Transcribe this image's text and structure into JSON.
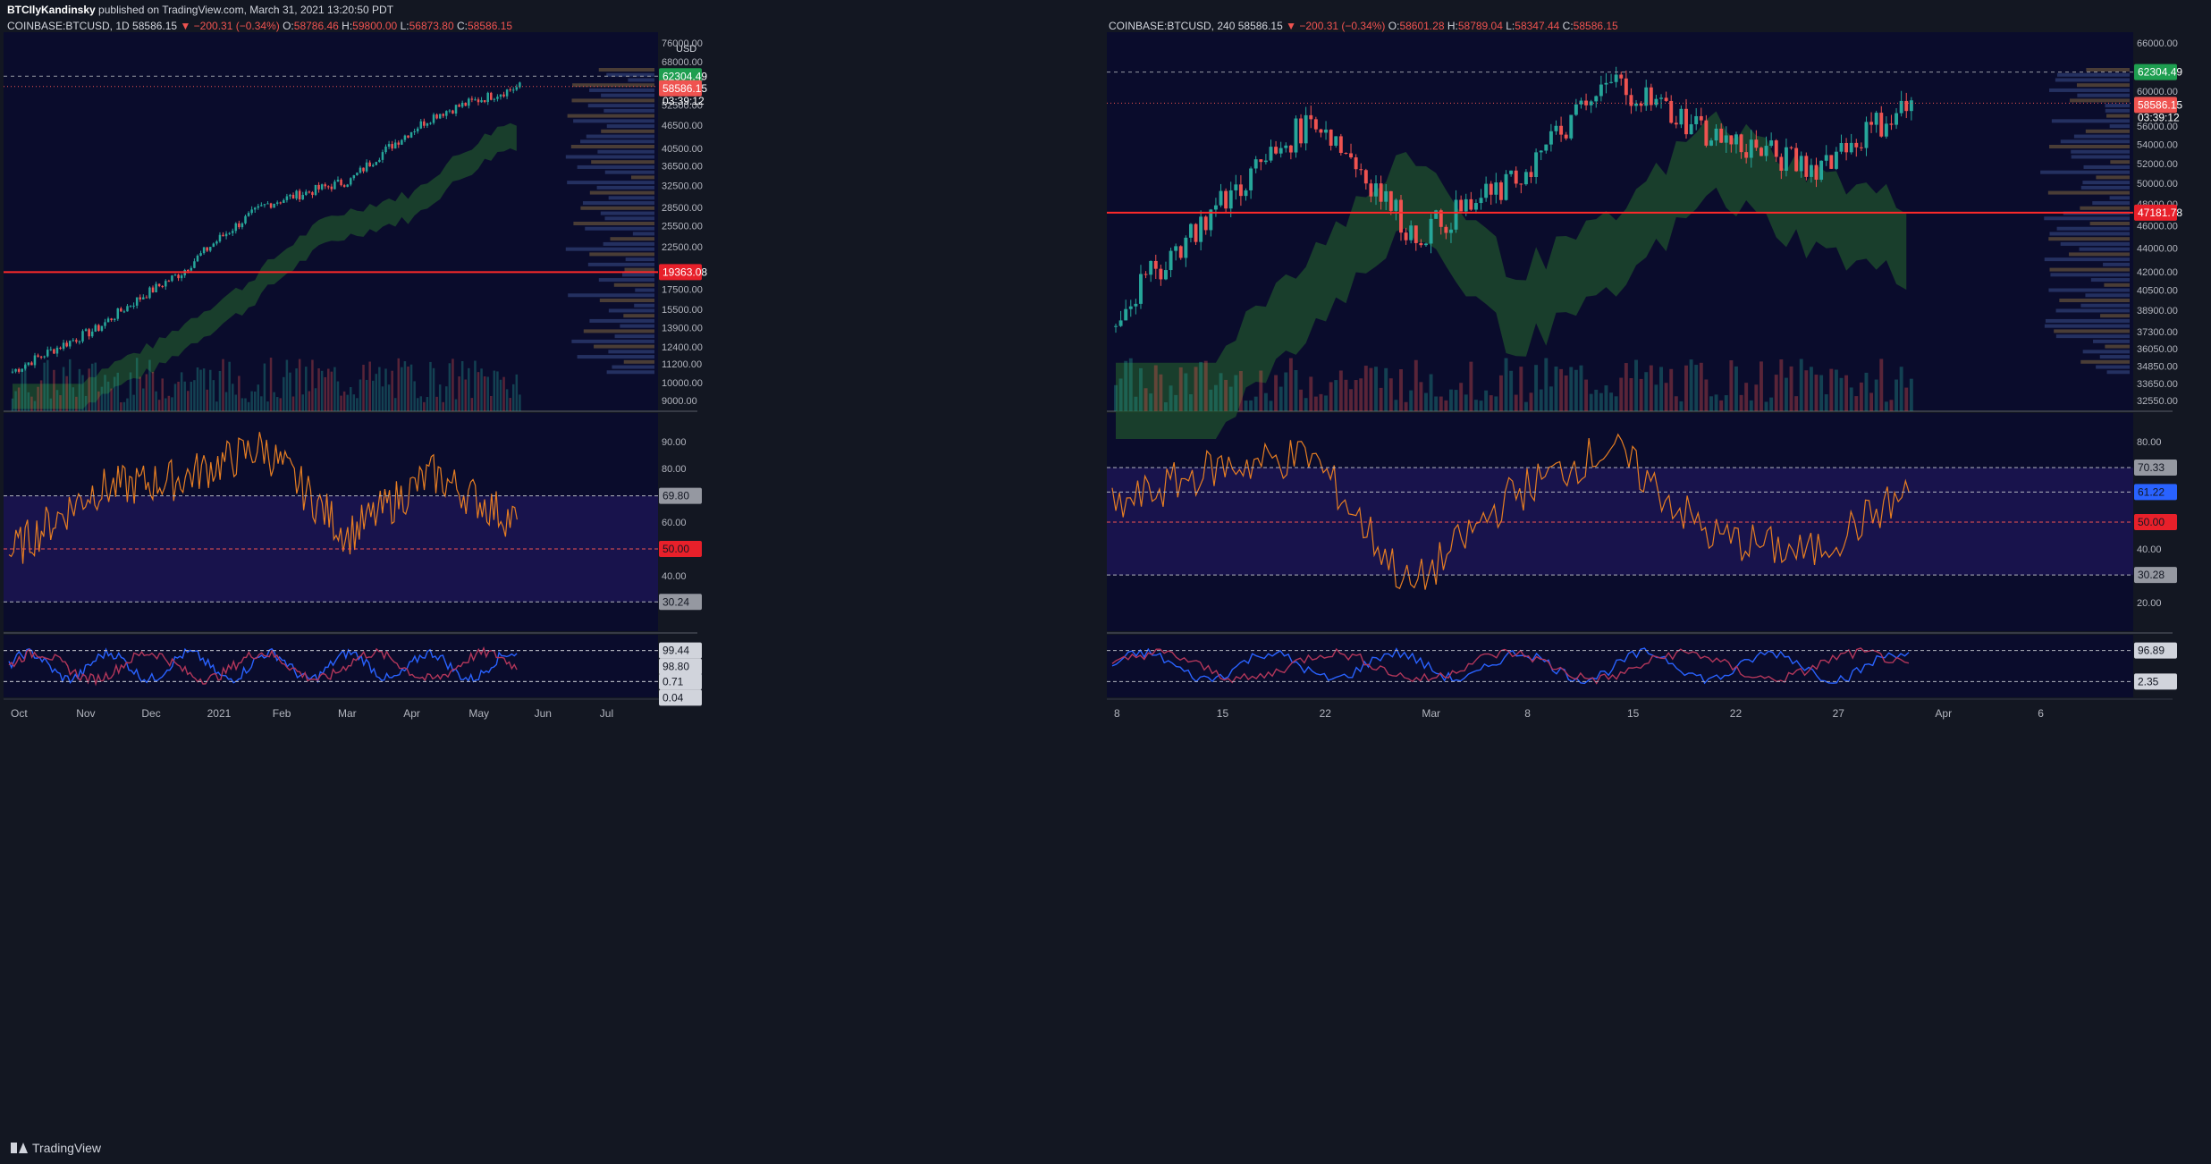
{
  "header": {
    "author": "BTCIlyKandinsky",
    "publish_text": "published on TradingView.com, March 31, 2021 13:20:50 PDT"
  },
  "brand": {
    "name": "TradingView"
  },
  "colors": {
    "background": "#0a0c2c",
    "up": "#26a69a",
    "down": "#ef5350",
    "rsi": "#e67e22",
    "trend": "#f5c242",
    "stoch_k": "#2962ff",
    "stoch_d": "#b2365a",
    "price_line": "#ef5350",
    "kumo_green": "#1f4f2c",
    "kumo_red": "#5a1020"
  },
  "left": {
    "symbol": "COINBASE:BTCUSD, 1D",
    "last": "58586.15",
    "change": "−200.31 (−0.34%)",
    "o_label": "O:",
    "o": "58786.46",
    "h_label": "H:",
    "h": "59800.00",
    "l_label": "L:",
    "l": "56873.80",
    "c_label": "C:",
    "c": "58586.15",
    "currency": "USD",
    "price_ticks": [
      "76000.00",
      "68000.00",
      "61000.00",
      "52500.00",
      "46500.00",
      "40500.00",
      "36500.00",
      "32500.00",
      "28500.00",
      "25500.00",
      "22500.00",
      "17500.00",
      "15500.00",
      "13900.00",
      "12400.00",
      "11200.00",
      "10000.00",
      "9000.00"
    ],
    "tags": {
      "resistance": "62304.49",
      "last_price": "58586.15",
      "countdown": "03:39:12",
      "support": "19363.08"
    },
    "rsi_ticks": [
      "90.00",
      "80.00",
      "60.00",
      "40.00"
    ],
    "rsi_tags": [
      "69.80",
      "50.00",
      "30.24"
    ],
    "stoch_tags": [
      "99.44",
      "98.80",
      "0.71",
      "0.04"
    ],
    "time_ticks": [
      "Oct",
      "Nov",
      "Dec",
      "2021",
      "Feb",
      "Mar",
      "Apr",
      "May",
      "Jun",
      "Jul"
    ]
  },
  "right": {
    "symbol": "COINBASE:BTCUSD, 240",
    "last": "58586.15",
    "change": "−200.31 (−0.34%)",
    "o_label": "O:",
    "o": "58601.28",
    "h_label": "H:",
    "h": "58789.04",
    "l_label": "L:",
    "l": "58347.44",
    "c_label": "C:",
    "c": "58586.15",
    "price_ticks": [
      "66000.00",
      "60000.00",
      "56000.00",
      "54000.00",
      "52000.00",
      "50000.00",
      "48000.00",
      "46000.00",
      "44000.00",
      "42000.00",
      "40500.00",
      "38900.00",
      "37300.00",
      "36050.00",
      "34850.00",
      "33650.00",
      "32550.00"
    ],
    "tags": {
      "resistance": "62304.49",
      "last_price": "58586.15",
      "countdown": "03:39:12",
      "support": "47181.78"
    },
    "rsi_ticks": [
      "80.00",
      "60.00",
      "40.00",
      "20.00"
    ],
    "rsi_tags": [
      "70.33",
      "61.22",
      "50.00",
      "30.28"
    ],
    "stoch_tags": [
      "96.89",
      "2.35"
    ],
    "time_ticks": [
      "8",
      "15",
      "22",
      "Mar",
      "8",
      "15",
      "22",
      "27",
      "Apr",
      "6"
    ]
  },
  "chart_data": [
    {
      "type": "candlestick",
      "title": "COINBASE:BTCUSD, 1D",
      "x": [
        "Oct",
        "Nov",
        "Dec",
        "2021",
        "Feb",
        "Mar",
        "Apr"
      ],
      "series": [
        {
          "values": [
            10700,
            13800,
            19300,
            29000,
            33500,
            49500,
            58586
          ]
        }
      ],
      "ylim": [
        9000,
        76000
      ],
      "scale": "log",
      "horizontal_lines": [
        62304.49,
        19363.08
      ]
    },
    {
      "type": "line",
      "title": "RSI (1D)",
      "x": [
        "Oct",
        "Nov",
        "Dec",
        "2021",
        "Feb",
        "Mar",
        "Apr"
      ],
      "series": [
        {
          "values": [
            48,
            72,
            76,
            88,
            55,
            78,
            60
          ]
        }
      ],
      "ylim": [
        20,
        100
      ],
      "levels": [
        69.8,
        50.0,
        30.24
      ]
    },
    {
      "type": "line",
      "title": "Stoch RSI (1D)",
      "series": [
        {
          "values": [
            99.44,
            98.8,
            0.71,
            0.04
          ]
        }
      ],
      "levels": [
        99.44,
        98.8,
        0.71,
        0.04
      ]
    },
    {
      "type": "candlestick",
      "title": "COINBASE:BTCUSD, 240",
      "x": [
        "8",
        "15",
        "22",
        "Mar",
        "8",
        "15",
        "22",
        "27",
        "Apr"
      ],
      "series": [
        {
          "values": [
            38500,
            47500,
            57000,
            45000,
            50000,
            61200,
            55000,
            51500,
            58586
          ]
        }
      ],
      "ylim": [
        32550,
        66000
      ],
      "scale": "log",
      "horizontal_lines": [
        62304.49,
        47181.78
      ]
    },
    {
      "type": "line",
      "title": "RSI (240)",
      "x": [
        "8",
        "15",
        "22",
        "Mar",
        "8",
        "15",
        "22",
        "27",
        "Apr"
      ],
      "series": [
        {
          "values": [
            55,
            70,
            75,
            25,
            60,
            78,
            45,
            38,
            61.22
          ]
        }
      ],
      "ylim": [
        10,
        90
      ],
      "levels": [
        70.33,
        61.22,
        50.0,
        30.28
      ]
    },
    {
      "type": "line",
      "title": "Stoch RSI (240)",
      "series": [
        {
          "values": [
            96.89,
            2.35
          ]
        }
      ],
      "levels": [
        96.89,
        2.35
      ]
    }
  ]
}
